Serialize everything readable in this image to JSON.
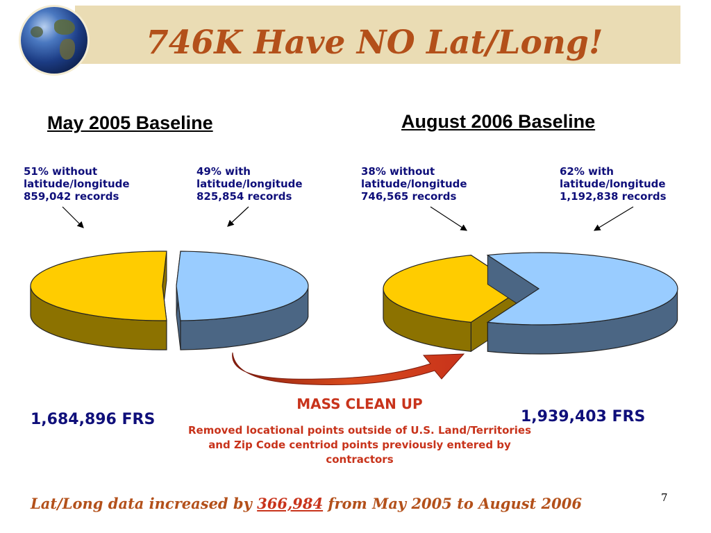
{
  "slide": {
    "title": "746K Have NO Lat/Long!",
    "page_number": "7",
    "summary": {
      "prefix": "Lat/Long data increased by ",
      "value": "366,984",
      "suffix": " from May 2005 to August 2006"
    },
    "cleanup": {
      "title": "MASS CLEAN UP",
      "description": "Removed locational points outside of U.S. Land/Territories and Zip Code centriod points previously entered by contractors"
    }
  },
  "chart_data": [
    {
      "type": "pie",
      "title": "May 2005 Baseline",
      "total_label": "1,684,896 FRS",
      "slices": [
        {
          "name": "without latitude/longitude",
          "percent": 51,
          "records": 859042,
          "color": "#ffcc00",
          "label_lines": [
            "51% without",
            "latitude/longitude",
            "859,042 records"
          ]
        },
        {
          "name": "with latitude/longitude",
          "percent": 49,
          "records": 825854,
          "color": "#99ccff",
          "label_lines": [
            "49% with",
            "latitude/longitude",
            "825,854 records"
          ]
        }
      ]
    },
    {
      "type": "pie",
      "title": "August 2006 Baseline",
      "total_label": "1,939,403 FRS",
      "slices": [
        {
          "name": "without latitude/longitude",
          "percent": 38,
          "records": 746565,
          "color": "#ffcc00",
          "label_lines": [
            "38% without",
            "latitude/longitude",
            "746,565 records"
          ]
        },
        {
          "name": "with latitude/longitude",
          "percent": 62,
          "records": 1192838,
          "color": "#99ccff",
          "label_lines": [
            "62% with",
            "latitude/longitude",
            "1,192,838 records"
          ]
        }
      ]
    }
  ],
  "colors": {
    "title": "#b3501a",
    "label_text": "#0f0f7a",
    "cleanup_text": "#c8331b",
    "banner": "#eadcb4"
  },
  "icons": [
    "globe-icon",
    "curved-arrow-icon"
  ]
}
